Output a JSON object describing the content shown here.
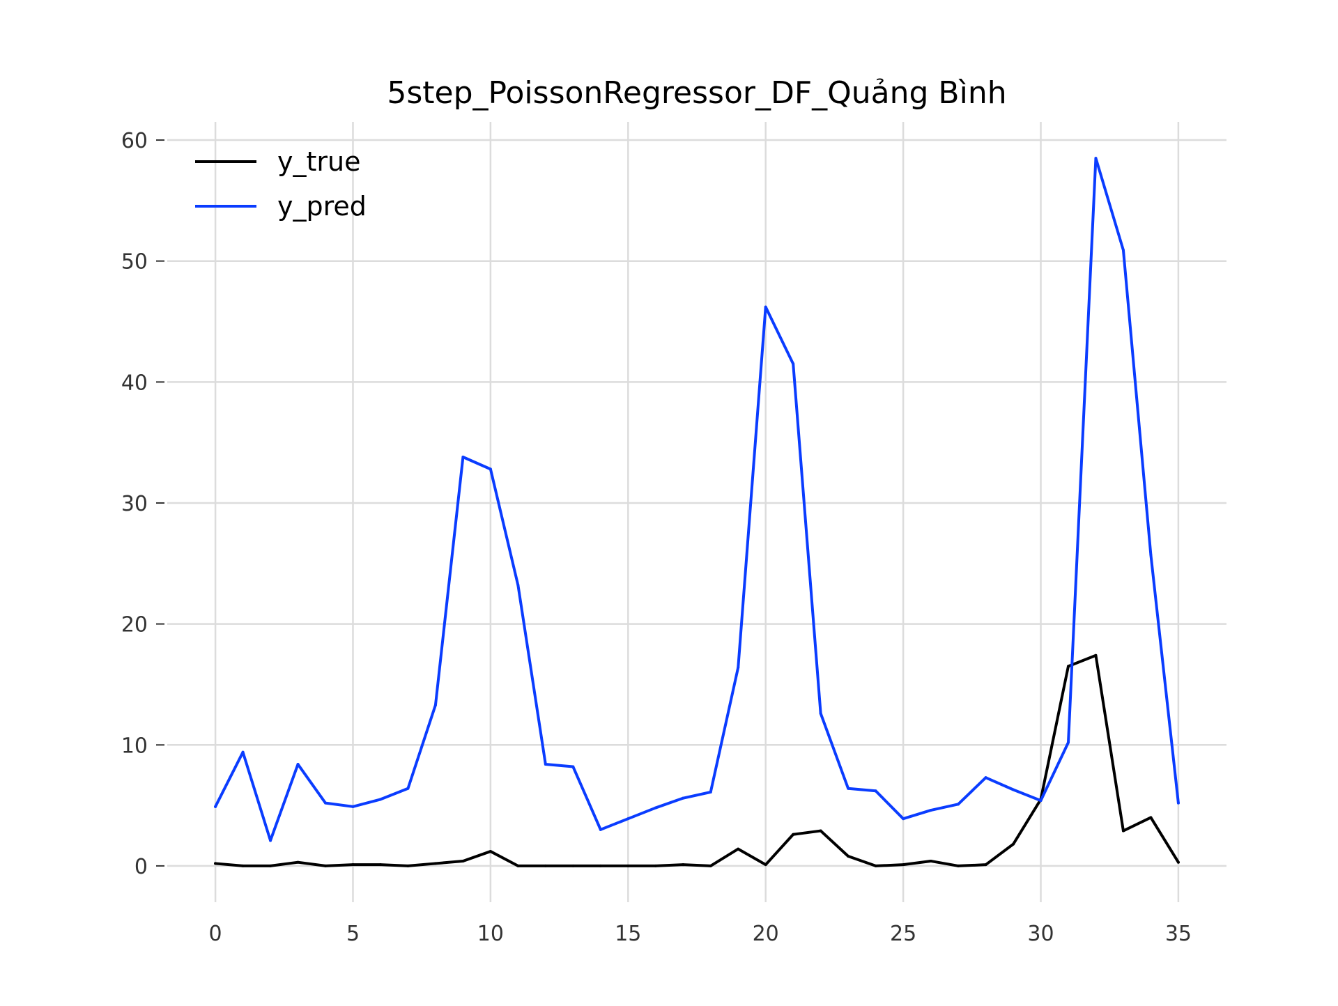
{
  "chart_data": {
    "type": "line",
    "title": "5step_PoissonRegressor_DF_Quảng Bình",
    "xlabel": "",
    "ylabel": "",
    "x": [
      0,
      1,
      2,
      3,
      4,
      5,
      6,
      7,
      8,
      9,
      10,
      11,
      12,
      13,
      14,
      15,
      16,
      17,
      18,
      19,
      20,
      21,
      22,
      23,
      24,
      25,
      26,
      27,
      28,
      29,
      30,
      31,
      32,
      33,
      34,
      35
    ],
    "xticks": [
      0,
      5,
      10,
      15,
      20,
      25,
      30,
      35
    ],
    "yticks": [
      0,
      10,
      20,
      30,
      40,
      50,
      60
    ],
    "xlim": [
      -1.75,
      36.75
    ],
    "ylim": [
      -3.0,
      61.5
    ],
    "grid": true,
    "legend_position": "top-left",
    "series": [
      {
        "name": "y_true",
        "color": "#000000",
        "values": [
          0.2,
          0.0,
          0.0,
          0.3,
          0.0,
          0.1,
          0.1,
          0.0,
          0.2,
          0.4,
          1.2,
          0.0,
          0.0,
          0.0,
          0.0,
          0.0,
          0.0,
          0.1,
          0.0,
          1.4,
          0.1,
          2.6,
          2.9,
          0.8,
          0.0,
          0.1,
          0.4,
          0.0,
          0.1,
          1.8,
          5.5,
          16.5,
          17.4,
          2.9,
          4.0,
          0.3
        ]
      },
      {
        "name": "y_pred",
        "color": "#0a3cff",
        "values": [
          4.9,
          9.4,
          2.1,
          8.4,
          5.2,
          4.9,
          5.5,
          6.4,
          13.3,
          33.8,
          32.8,
          23.2,
          8.4,
          8.2,
          3.0,
          3.9,
          4.8,
          5.6,
          6.1,
          16.4,
          46.2,
          41.5,
          12.6,
          6.4,
          6.2,
          3.9,
          4.6,
          5.1,
          7.3,
          6.3,
          5.4,
          10.2,
          58.5,
          50.9,
          25.7,
          5.2
        ]
      }
    ]
  }
}
